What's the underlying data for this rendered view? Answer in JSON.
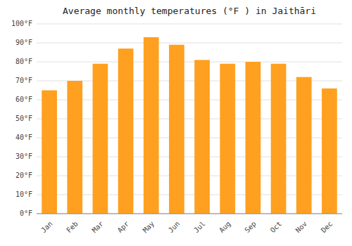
{
  "chart_data": {
    "type": "bar",
    "title": "Average monthly temperatures (°F ) in Jaithāri",
    "categories": [
      "Jan",
      "Feb",
      "Mar",
      "Apr",
      "May",
      "Jun",
      "Jul",
      "Aug",
      "Sep",
      "Oct",
      "Nov",
      "Dec"
    ],
    "values": [
      65,
      70,
      79,
      87,
      93,
      89,
      81,
      79,
      80,
      79,
      72,
      66
    ],
    "color": "#FFA020",
    "ylim": [
      0,
      100
    ],
    "yticks": [
      {
        "value": 0,
        "label": "0°F"
      },
      {
        "value": 10,
        "label": "10°F"
      },
      {
        "value": 20,
        "label": "20°F"
      },
      {
        "value": 30,
        "label": "30°F"
      },
      {
        "value": 40,
        "label": "40°F"
      },
      {
        "value": 50,
        "label": "50°F"
      },
      {
        "value": 60,
        "label": "60°F"
      },
      {
        "value": 70,
        "label": "70°F"
      },
      {
        "value": 80,
        "label": "80°F"
      },
      {
        "value": 90,
        "label": "90°F"
      },
      {
        "value": 100,
        "label": "100°F"
      }
    ],
    "grid": true
  }
}
